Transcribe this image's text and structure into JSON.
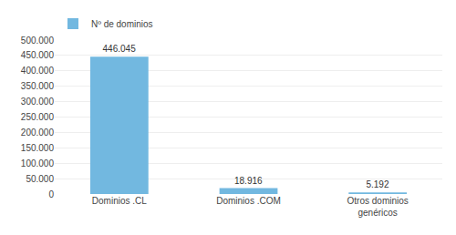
{
  "chart_data": {
    "type": "bar",
    "categories": [
      "Dominios .CL",
      "Dominios .COM",
      "Otros dominios\ngenéricos"
    ],
    "series": [
      {
        "name": "Nº de dominios",
        "color": "#72b8e0",
        "values": [
          446045,
          18916,
          5192
        ],
        "value_labels": [
          "446.045",
          "18.916",
          "5.192"
        ]
      }
    ],
    "data_labels": true,
    "ylim": [
      0,
      500000
    ],
    "yticks": [
      0,
      {
        "value": 50000,
        "label": "50.000"
      },
      {
        "value": 100000,
        "label": "100.000"
      },
      {
        "value": 150000,
        "label": "150.000"
      },
      {
        "value": 200000,
        "label": "200.000"
      },
      {
        "value": 250000,
        "label": "250.000"
      },
      {
        "value": 300000,
        "label": "300.000"
      },
      {
        "value": 350000,
        "label": "350.000"
      },
      {
        "value": 400000,
        "label": "400.000"
      },
      {
        "value": 450000,
        "label": "450.000"
      },
      {
        "value": 500000,
        "label": "500.000"
      }
    ],
    "grid": true,
    "legend": "upper left"
  }
}
